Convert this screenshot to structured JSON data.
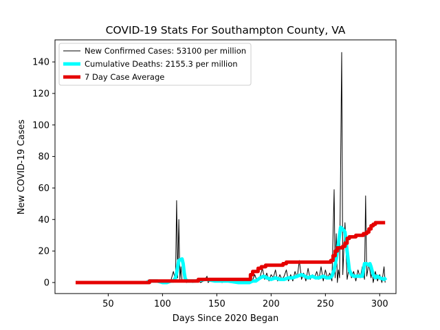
{
  "chart_data": {
    "type": "line",
    "title": "COVID-19 Stats For Southampton County, VA",
    "xlabel": "Days Since 2020 Began",
    "ylabel": "New COVID-19 Cases",
    "xlim": [
      1,
      315
    ],
    "ylim": [
      -7,
      154
    ],
    "x_ticks": [
      50,
      100,
      150,
      200,
      250,
      300
    ],
    "y_ticks": [
      0,
      20,
      40,
      60,
      80,
      100,
      120,
      140
    ],
    "grid": false,
    "legend_position": "top-left",
    "series": [
      {
        "name": "New Confirmed Cases: 53100 per million",
        "color": "#000000",
        "points": [
          [
            20,
            0
          ],
          [
            60,
            0
          ],
          [
            85,
            0
          ],
          [
            90,
            1
          ],
          [
            100,
            0
          ],
          [
            104,
            1
          ],
          [
            106,
            0
          ],
          [
            108,
            2
          ],
          [
            110,
            7
          ],
          [
            112,
            1
          ],
          [
            113,
            52
          ],
          [
            114,
            3
          ],
          [
            115,
            40
          ],
          [
            116,
            2
          ],
          [
            117,
            10
          ],
          [
            118,
            1
          ],
          [
            120,
            2
          ],
          [
            122,
            0
          ],
          [
            125,
            1
          ],
          [
            128,
            0
          ],
          [
            132,
            2
          ],
          [
            135,
            0
          ],
          [
            138,
            1
          ],
          [
            140,
            3
          ],
          [
            141,
            4
          ],
          [
            142,
            0
          ],
          [
            145,
            2
          ],
          [
            150,
            1
          ],
          [
            155,
            0
          ],
          [
            160,
            2
          ],
          [
            165,
            0
          ],
          [
            170,
            1
          ],
          [
            175,
            0
          ],
          [
            180,
            3
          ],
          [
            182,
            0
          ],
          [
            185,
            5
          ],
          [
            187,
            1
          ],
          [
            190,
            4
          ],
          [
            192,
            9
          ],
          [
            194,
            2
          ],
          [
            196,
            6
          ],
          [
            198,
            1
          ],
          [
            200,
            5
          ],
          [
            202,
            3
          ],
          [
            204,
            8
          ],
          [
            206,
            1
          ],
          [
            208,
            5
          ],
          [
            210,
            2
          ],
          [
            212,
            4
          ],
          [
            214,
            8
          ],
          [
            216,
            1
          ],
          [
            218,
            5
          ],
          [
            220,
            1
          ],
          [
            222,
            7
          ],
          [
            224,
            3
          ],
          [
            226,
            14
          ],
          [
            228,
            2
          ],
          [
            230,
            6
          ],
          [
            232,
            1
          ],
          [
            234,
            9
          ],
          [
            236,
            2
          ],
          [
            238,
            5
          ],
          [
            240,
            3
          ],
          [
            242,
            7
          ],
          [
            244,
            2
          ],
          [
            246,
            10
          ],
          [
            248,
            1
          ],
          [
            250,
            8
          ],
          [
            252,
            3
          ],
          [
            254,
            6
          ],
          [
            256,
            1
          ],
          [
            258,
            59
          ],
          [
            259,
            3
          ],
          [
            260,
            31
          ],
          [
            261,
            0
          ],
          [
            262,
            8
          ],
          [
            263,
            3
          ],
          [
            265,
            146
          ],
          [
            266,
            5
          ],
          [
            268,
            38
          ],
          [
            270,
            2
          ],
          [
            272,
            10
          ],
          [
            274,
            3
          ],
          [
            276,
            7
          ],
          [
            278,
            1
          ],
          [
            280,
            8
          ],
          [
            282,
            3
          ],
          [
            284,
            10
          ],
          [
            286,
            2
          ],
          [
            287,
            55
          ],
          [
            288,
            4
          ],
          [
            290,
            12
          ],
          [
            292,
            3
          ],
          [
            293,
            9
          ],
          [
            294,
            0
          ],
          [
            296,
            7
          ],
          [
            298,
            1
          ],
          [
            300,
            5
          ],
          [
            302,
            0
          ],
          [
            304,
            10
          ],
          [
            305,
            0
          ]
        ]
      },
      {
        "name": "Cumulative Deaths: 2155.3 per million",
        "color": "#00ffff",
        "points": [
          [
            20,
            0
          ],
          [
            60,
            0
          ],
          [
            85,
            0
          ],
          [
            88,
            1
          ],
          [
            95,
            1
          ],
          [
            100,
            0
          ],
          [
            104,
            0
          ],
          [
            108,
            1
          ],
          [
            110,
            1
          ],
          [
            112,
            3
          ],
          [
            113,
            6
          ],
          [
            114,
            10
          ],
          [
            115,
            14
          ],
          [
            118,
            15
          ],
          [
            119,
            12
          ],
          [
            120,
            6
          ],
          [
            121,
            2
          ],
          [
            123,
            1
          ],
          [
            130,
            1
          ],
          [
            140,
            2
          ],
          [
            148,
            1
          ],
          [
            160,
            1
          ],
          [
            170,
            0
          ],
          [
            180,
            0
          ],
          [
            183,
            1
          ],
          [
            186,
            1
          ],
          [
            188,
            2
          ],
          [
            190,
            3
          ],
          [
            193,
            4
          ],
          [
            196,
            3
          ],
          [
            200,
            2
          ],
          [
            204,
            3
          ],
          [
            208,
            2
          ],
          [
            212,
            2
          ],
          [
            216,
            3
          ],
          [
            220,
            3
          ],
          [
            224,
            4
          ],
          [
            228,
            5
          ],
          [
            231,
            4
          ],
          [
            234,
            3
          ],
          [
            238,
            4
          ],
          [
            241,
            3
          ],
          [
            244,
            3
          ],
          [
            248,
            4
          ],
          [
            251,
            3
          ],
          [
            254,
            3
          ],
          [
            256,
            4
          ],
          [
            258,
            8
          ],
          [
            260,
            15
          ],
          [
            262,
            25
          ],
          [
            264,
            35
          ],
          [
            266,
            34
          ],
          [
            268,
            32
          ],
          [
            270,
            20
          ],
          [
            272,
            8
          ],
          [
            274,
            5
          ],
          [
            276,
            4
          ],
          [
            280,
            4
          ],
          [
            284,
            4
          ],
          [
            286,
            12
          ],
          [
            288,
            12
          ],
          [
            290,
            11
          ],
          [
            291,
            12
          ],
          [
            292,
            10
          ],
          [
            294,
            5
          ],
          [
            296,
            3
          ],
          [
            298,
            4
          ],
          [
            300,
            3
          ],
          [
            304,
            2
          ],
          [
            306,
            3
          ]
        ]
      },
      {
        "name": "7 Day Case Average",
        "color": "#e50000",
        "points": [
          [
            20,
            0
          ],
          [
            88,
            0
          ],
          [
            88,
            1
          ],
          [
            133,
            1
          ],
          [
            133,
            2
          ],
          [
            181,
            2
          ],
          [
            181,
            5
          ],
          [
            183,
            5
          ],
          [
            183,
            7
          ],
          [
            188,
            7
          ],
          [
            188,
            9
          ],
          [
            191,
            9
          ],
          [
            191,
            10
          ],
          [
            195,
            10
          ],
          [
            195,
            11
          ],
          [
            211,
            11
          ],
          [
            211,
            12
          ],
          [
            214,
            12
          ],
          [
            214,
            13
          ],
          [
            255,
            13
          ],
          [
            255,
            14
          ],
          [
            257,
            14
          ],
          [
            257,
            17
          ],
          [
            259,
            17
          ],
          [
            259,
            20
          ],
          [
            261,
            20
          ],
          [
            261,
            22
          ],
          [
            266,
            22
          ],
          [
            266,
            23
          ],
          [
            268,
            23
          ],
          [
            268,
            25
          ],
          [
            270,
            25
          ],
          [
            270,
            28
          ],
          [
            272,
            28
          ],
          [
            272,
            29
          ],
          [
            278,
            29
          ],
          [
            278,
            30
          ],
          [
            285,
            30
          ],
          [
            285,
            31
          ],
          [
            288,
            31
          ],
          [
            288,
            32
          ],
          [
            290,
            32
          ],
          [
            290,
            34
          ],
          [
            292,
            34
          ],
          [
            292,
            36
          ],
          [
            294,
            36
          ],
          [
            294,
            37
          ],
          [
            296,
            37
          ],
          [
            296,
            38
          ],
          [
            305,
            38
          ]
        ]
      }
    ]
  }
}
